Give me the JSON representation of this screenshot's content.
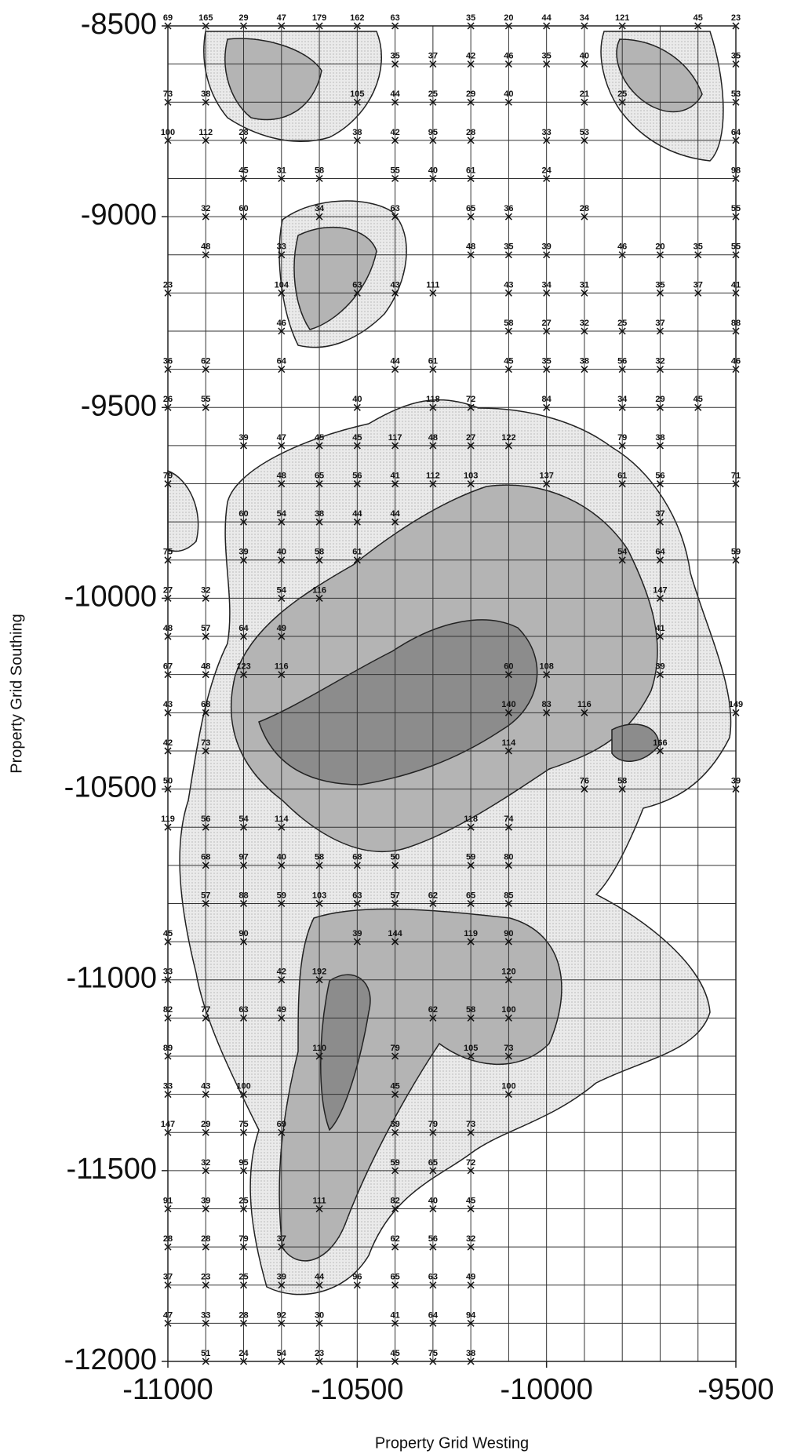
{
  "chart_data": {
    "type": "contour",
    "x_label": "Property Grid Westing",
    "y_label": "Property Grid Southing",
    "xlim": [
      -11000,
      -9500
    ],
    "ylim": [
      -12000,
      -8500
    ],
    "xticks": [
      -11000,
      -10500,
      -10000,
      -9500
    ],
    "yticks": [
      -8500,
      -9000,
      -9500,
      -10000,
      -10500,
      -11000,
      -11500,
      -12000
    ],
    "grid": true,
    "grid_spacing": 100,
    "rows": [
      {
        "y": -8500,
        "x": [
          -11000,
          -10900,
          -10800,
          -10700,
          -10600,
          -10500,
          -10400,
          -10200,
          -10100,
          -10000,
          -9900,
          -9800,
          -9600,
          -9500
        ],
        "values": [
          69,
          165,
          29,
          47,
          179,
          162,
          63,
          35,
          20,
          44,
          34,
          121,
          45,
          23
        ]
      },
      {
        "y": -8600,
        "x": [
          -10400,
          -10300,
          -10200,
          -10100,
          -10000,
          -9900,
          -9500
        ],
        "values": [
          35,
          37,
          42,
          46,
          35,
          40,
          35
        ]
      },
      {
        "y": -8700,
        "x": [
          -11000,
          -10900,
          -10500,
          -10400,
          -10300,
          -10200,
          -10100,
          -9900,
          -9800,
          -9500
        ],
        "values": [
          73,
          38,
          105,
          44,
          25,
          29,
          40,
          21,
          25,
          53
        ]
      },
      {
        "y": -8800,
        "x": [
          -11000,
          -10900,
          -10800,
          -10500,
          -10400,
          -10300,
          -10200,
          -10000,
          -9900,
          -9500
        ],
        "values": [
          100,
          112,
          28,
          38,
          42,
          95,
          28,
          33,
          53,
          64
        ]
      },
      {
        "y": -8900,
        "x": [
          -10800,
          -10700,
          -10600,
          -10400,
          -10300,
          -10200,
          -10000,
          -9500
        ],
        "values": [
          45,
          31,
          58,
          55,
          40,
          61,
          24,
          98
        ]
      },
      {
        "y": -9000,
        "x": [
          -10900,
          -10800,
          -10600,
          -10400,
          -10200,
          -10100,
          -9900,
          -9500
        ],
        "values": [
          32,
          60,
          34,
          63,
          65,
          36,
          28,
          55
        ]
      },
      {
        "y": -9100,
        "x": [
          -10900,
          -10700,
          -10200,
          -10100,
          -10000,
          -9800,
          -9700,
          -9600,
          -9500
        ],
        "values": [
          48,
          33,
          48,
          35,
          39,
          46,
          20,
          35,
          55
        ]
      },
      {
        "y": -9200,
        "x": [
          -11000,
          -10700,
          -10500,
          -10400,
          -10300,
          -10100,
          -10000,
          -9900,
          -9700,
          -9600,
          -9500
        ],
        "values": [
          23,
          104,
          63,
          43,
          111,
          43,
          34,
          31,
          35,
          37,
          41
        ]
      },
      {
        "y": -9300,
        "x": [
          -10700,
          -10100,
          -10000,
          -9900,
          -9800,
          -9700,
          -9500
        ],
        "values": [
          46,
          58,
          27,
          32,
          25,
          37,
          88
        ]
      },
      {
        "y": -9400,
        "x": [
          -11000,
          -10900,
          -10700,
          -10400,
          -10300,
          -10100,
          -10000,
          -9900,
          -9800,
          -9700,
          -9500
        ],
        "values": [
          36,
          62,
          64,
          44,
          61,
          45,
          35,
          38,
          56,
          32,
          46
        ]
      },
      {
        "y": -9500,
        "x": [
          -11000,
          -10900,
          -10500,
          -10300,
          -10200,
          -10000,
          -9800,
          -9700,
          -9600
        ],
        "values": [
          26,
          55,
          40,
          118,
          72,
          84,
          34,
          29,
          45
        ]
      },
      {
        "y": -9600,
        "x": [
          -10800,
          -10700,
          -10600,
          -10500,
          -10400,
          -10300,
          -10200,
          -10100,
          -9800,
          -9700
        ],
        "values": [
          39,
          47,
          45,
          45,
          117,
          48,
          27,
          122,
          79,
          38
        ]
      },
      {
        "y": -9700,
        "x": [
          -11000,
          -10700,
          -10600,
          -10500,
          -10400,
          -10300,
          -10200,
          -10000,
          -9800,
          -9700,
          -9500
        ],
        "values": [
          79,
          48,
          65,
          56,
          41,
          112,
          103,
          137,
          61,
          56,
          71
        ]
      },
      {
        "y": -9800,
        "x": [
          -10800,
          -10700,
          -10600,
          -10500,
          -10400,
          -9700
        ],
        "values": [
          60,
          54,
          38,
          44,
          44,
          37
        ]
      },
      {
        "y": -9900,
        "x": [
          -11000,
          -10800,
          -10700,
          -10600,
          -10500,
          -9800,
          -9700,
          -9500
        ],
        "values": [
          75,
          39,
          40,
          58,
          61,
          54,
          64,
          59
        ]
      },
      {
        "y": -10000,
        "x": [
          -11000,
          -10900,
          -10700,
          -10600,
          -9700
        ],
        "values": [
          27,
          32,
          54,
          116,
          147
        ]
      },
      {
        "y": -10100,
        "x": [
          -11000,
          -10900,
          -10800,
          -10700,
          -9700
        ],
        "values": [
          48,
          57,
          64,
          49,
          41
        ]
      },
      {
        "y": -10200,
        "x": [
          -11000,
          -10900,
          -10800,
          -10700,
          -10100,
          -10000,
          -9700
        ],
        "values": [
          67,
          48,
          123,
          116,
          60,
          108,
          39
        ]
      },
      {
        "y": -10300,
        "x": [
          -11000,
          -10900,
          -10100,
          -10000,
          -9900,
          -9500
        ],
        "values": [
          43,
          68,
          140,
          83,
          116,
          149
        ]
      },
      {
        "y": -10400,
        "x": [
          -11000,
          -10900,
          -10100,
          -9700
        ],
        "values": [
          42,
          73,
          114,
          166
        ]
      },
      {
        "y": -10500,
        "x": [
          -11000,
          -9900,
          -9800,
          -9500
        ],
        "values": [
          50,
          76,
          58,
          39
        ]
      },
      {
        "y": -10600,
        "x": [
          -11000,
          -10900,
          -10800,
          -10700,
          -10200,
          -10100
        ],
        "values": [
          119,
          56,
          54,
          114,
          118,
          74
        ]
      },
      {
        "y": -10700,
        "x": [
          -10900,
          -10800,
          -10700,
          -10600,
          -10500,
          -10400,
          -10200,
          -10100
        ],
        "values": [
          68,
          97,
          40,
          58,
          68,
          50,
          59,
          80
        ]
      },
      {
        "y": -10800,
        "x": [
          -10900,
          -10800,
          -10700,
          -10600,
          -10500,
          -10400,
          -10300,
          -10200,
          -10100
        ],
        "values": [
          57,
          88,
          59,
          103,
          63,
          57,
          62,
          65,
          85
        ]
      },
      {
        "y": -10900,
        "x": [
          -11000,
          -10800,
          -10500,
          -10400,
          -10200,
          -10100
        ],
        "values": [
          45,
          90,
          39,
          144,
          119,
          90
        ]
      },
      {
        "y": -11000,
        "x": [
          -11000,
          -10700,
          -10600,
          -10100
        ],
        "values": [
          33,
          42,
          192,
          120
        ]
      },
      {
        "y": -11100,
        "x": [
          -11000,
          -10900,
          -10800,
          -10700,
          -10300,
          -10200,
          -10100
        ],
        "values": [
          82,
          77,
          63,
          49,
          62,
          58,
          100
        ]
      },
      {
        "y": -11200,
        "x": [
          -11000,
          -10600,
          -10400,
          -10200,
          -10100
        ],
        "values": [
          89,
          110,
          79,
          105,
          73
        ]
      },
      {
        "y": -11300,
        "x": [
          -11000,
          -10900,
          -10800,
          -10400,
          -10100
        ],
        "values": [
          33,
          43,
          100,
          45,
          100
        ]
      },
      {
        "y": -11400,
        "x": [
          -11000,
          -10900,
          -10800,
          -10700,
          -10400,
          -10300,
          -10200
        ],
        "values": [
          147,
          29,
          75,
          69,
          39,
          79,
          73
        ]
      },
      {
        "y": -11500,
        "x": [
          -10900,
          -10800,
          -10400,
          -10300,
          -10200
        ],
        "values": [
          32,
          95,
          59,
          65,
          72
        ]
      },
      {
        "y": -11600,
        "x": [
          -11000,
          -10900,
          -10800,
          -10600,
          -10400,
          -10300,
          -10200
        ],
        "values": [
          91,
          39,
          25,
          111,
          82,
          40,
          45
        ]
      },
      {
        "y": -11700,
        "x": [
          -11000,
          -10900,
          -10800,
          -10700,
          -10400,
          -10300,
          -10200
        ],
        "values": [
          28,
          28,
          79,
          37,
          62,
          56,
          32
        ]
      },
      {
        "y": -11800,
        "x": [
          -11000,
          -10900,
          -10800,
          -10700,
          -10600,
          -10500,
          -10400,
          -10300,
          -10200
        ],
        "values": [
          37,
          23,
          25,
          39,
          44,
          96,
          65,
          63,
          49
        ]
      },
      {
        "y": -11900,
        "x": [
          -11000,
          -10900,
          -10800,
          -10700,
          -10600,
          -10400,
          -10300,
          -10200
        ],
        "values": [
          47,
          33,
          28,
          92,
          30,
          41,
          64,
          94
        ]
      },
      {
        "y": -12000,
        "x": [
          -10900,
          -10800,
          -10700,
          -10600,
          -10400,
          -10300,
          -10200
        ],
        "values": [
          51,
          24,
          54,
          23,
          45,
          75,
          38
        ]
      }
    ]
  }
}
